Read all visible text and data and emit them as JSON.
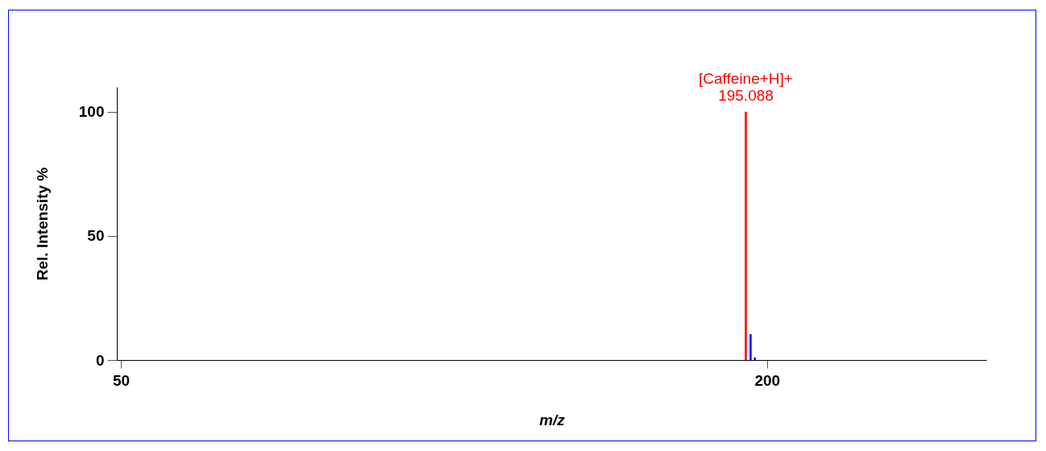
{
  "chart_data": {
    "type": "bar",
    "xlabel": "m/z",
    "ylabel": "Rel. Intensity %",
    "xlim": [
      50,
      250
    ],
    "xticks": [
      50,
      200
    ],
    "ylim": [
      0,
      110
    ],
    "yticks": [
      0,
      50,
      100
    ],
    "grid": false,
    "legend": false,
    "series": [
      {
        "color": "#ff0000",
        "x": [
          195.088
        ],
        "values": [
          100
        ]
      },
      {
        "color": "#0000ff",
        "x": [
          196.2,
          197.2
        ],
        "values": [
          10.4,
          1
        ]
      }
    ],
    "annotations": [
      {
        "text": "[Caffeine+H]+",
        "x": 195.088,
        "y": 100
      },
      {
        "text": "195.088",
        "x": 195.088,
        "y": 100
      }
    ]
  }
}
